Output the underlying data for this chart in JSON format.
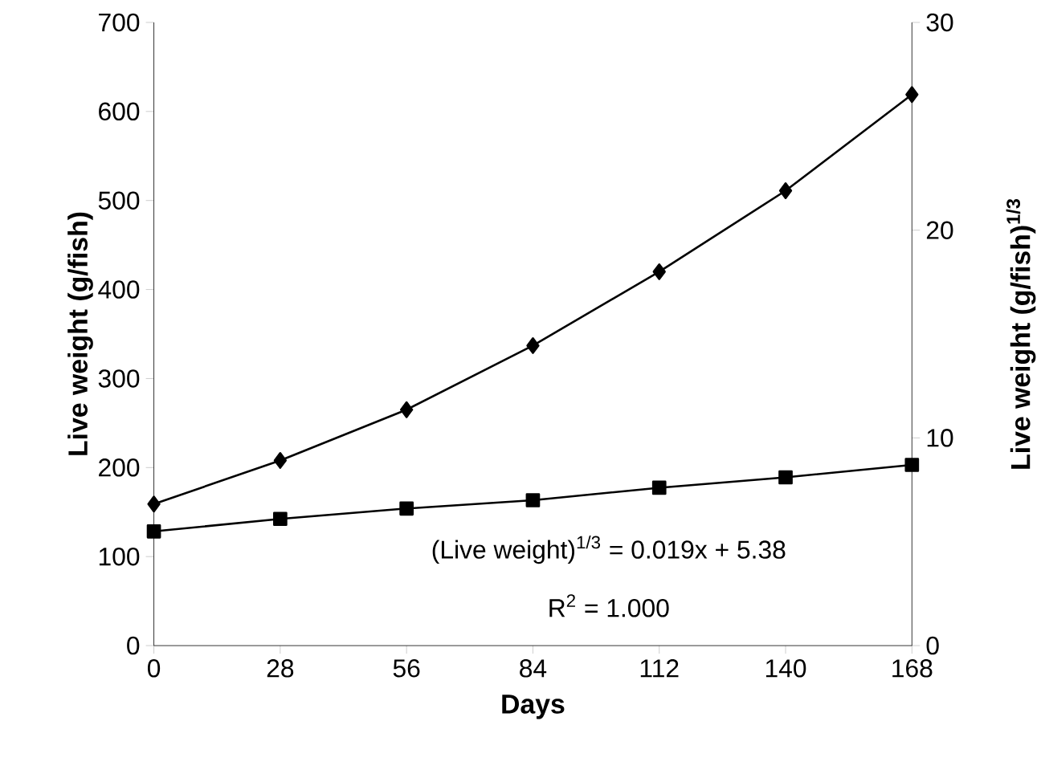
{
  "chart_data": {
    "type": "line",
    "xlabel": "Days",
    "ylabel": "Live weight (g/fish)",
    "y2label": "Live weight (g/fish)$^{1/3}$",
    "x": [
      0,
      28,
      56,
      84,
      112,
      140,
      168
    ],
    "series": [
      {
        "color": "#000000",
        "marker": "diamond",
        "values": [
          159,
          208,
          265,
          337,
          420,
          511,
          619
        ]
      },
      {
        "color": "#000000",
        "marker": "square",
        "axis": "y2",
        "values": [
          5.5,
          6.1,
          6.6,
          7.0,
          7.6,
          8.1,
          8.7
        ]
      }
    ],
    "xlim": [
      0,
      168
    ],
    "xticks": [
      0,
      28,
      56,
      84,
      112,
      140,
      168
    ],
    "ylim": [
      0,
      700
    ],
    "yticks": [
      0,
      100,
      200,
      300,
      400,
      500,
      600,
      700
    ],
    "y2lim": [
      0,
      30
    ],
    "y2ticks": [
      0,
      10,
      20,
      30
    ],
    "annotations": [
      "(Live weight)$^{1/3}$ = 0.019x + 5.38",
      "R$^{2}$ = 1.000"
    ]
  }
}
